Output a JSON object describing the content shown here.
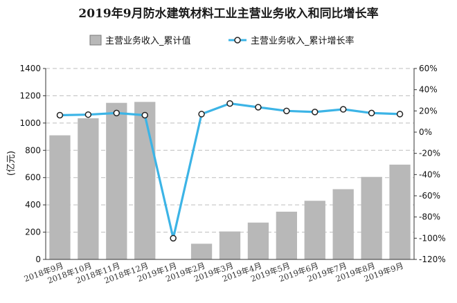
{
  "chart_data": {
    "type": "bar",
    "title": "2019年9月防水建筑材料工业主营业务收入和同比增长率",
    "ylabel": "亿元",
    "ylabel_display": "(亿元)",
    "y_left": {
      "min": 0,
      "max": 1400,
      "step": 200
    },
    "y_right": {
      "min": -120,
      "max": 60,
      "step": 20,
      "unit": "%"
    },
    "grid": true,
    "legend_position": "top",
    "categories": [
      "2018年9月",
      "2018年10月",
      "2018年11月",
      "2018年12月",
      "2019年1月",
      "2019年2月",
      "2019年3月",
      "2019年4月",
      "2019年5月",
      "2019年6月",
      "2019年7月",
      "2019年8月",
      "2019年9月"
    ],
    "series": [
      {
        "name": "主营业务收入_累计值",
        "type": "bar",
        "axis": "left",
        "color": "#b8b8b8",
        "values": [
          910,
          1035,
          1148,
          1155,
          null,
          115,
          205,
          270,
          350,
          430,
          515,
          605,
          695
        ]
      },
      {
        "name": "主营业务收入_累计增长率",
        "type": "line",
        "axis": "right",
        "color": "#3cb4e6",
        "values": [
          16,
          16.5,
          18,
          16,
          -100,
          17,
          27,
          23.5,
          20,
          19,
          21.5,
          18,
          17
        ]
      }
    ]
  }
}
